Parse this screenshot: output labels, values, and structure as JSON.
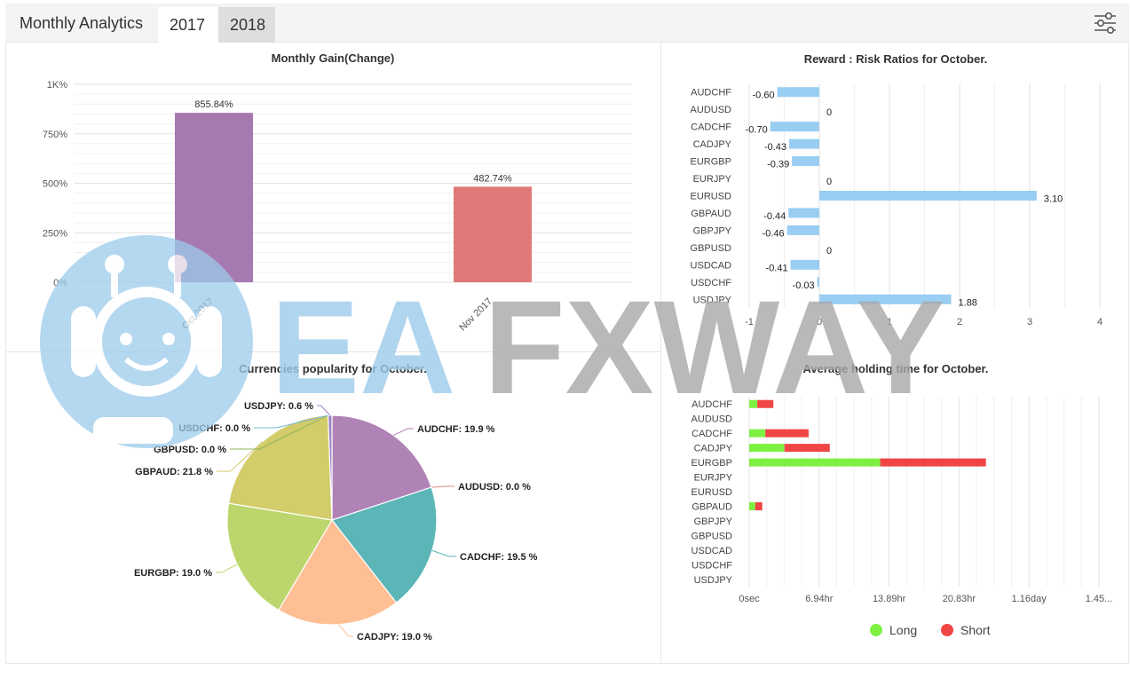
{
  "header": {
    "title": "Monthly Analytics",
    "tabs": [
      {
        "label": "2017"
      },
      {
        "label": "2018"
      }
    ],
    "active_tab": "2017"
  },
  "settings": {
    "icon": "sliders-icon"
  },
  "watermark": {
    "text_ea": "EA",
    "text_fxway": "FXWAY",
    "icon": "robot-face-icon",
    "color_blue": "#9ccbeb",
    "color_gray": "#a8a8a8"
  },
  "chart_data": [
    {
      "type": "bar",
      "title": "Monthly Gain(Change)",
      "categories": [
        "Oct 2017",
        "Nov 2017"
      ],
      "values": [
        855.84,
        482.74
      ],
      "value_labels": [
        "855.84%",
        "482.74%"
      ],
      "colors": [
        "#a679b0",
        "#e17878"
      ],
      "yticks": [
        "0%",
        "250%",
        "500%",
        "750%",
        "1K%"
      ],
      "ylim": [
        0,
        1000
      ],
      "grid": true
    },
    {
      "type": "bar",
      "orientation": "horizontal",
      "title": "Reward : Risk Ratios for October.",
      "categories": [
        "AUDCHF",
        "AUDUSD",
        "CADCHF",
        "CADJPY",
        "EURGBP",
        "EURJPY",
        "EURUSD",
        "GBPAUD",
        "GBPJPY",
        "GBPUSD",
        "USDCAD",
        "USDCHF",
        "USDJPY"
      ],
      "values": [
        -0.6,
        0,
        -0.7,
        -0.43,
        -0.39,
        0,
        3.1,
        -0.44,
        -0.46,
        0,
        -0.41,
        -0.03,
        1.88
      ],
      "value_labels": [
        "-0.60",
        "0",
        "-0.70",
        "-0.43",
        "-0.39",
        "0",
        "3.10",
        "-0.44",
        "-0.46",
        "0",
        "-0.41",
        "-0.03",
        "1.88"
      ],
      "color": "#99cdf2",
      "xticks": [
        "-1",
        "0",
        "1",
        "2",
        "3",
        "4"
      ],
      "xlim": [
        -1,
        4
      ],
      "grid": true
    },
    {
      "type": "pie",
      "title": "Currencies popularity for October.",
      "slices": [
        {
          "label": "AUDCHF: 19.9 %",
          "value": 19.9,
          "color": "#b083b6"
        },
        {
          "label": "AUDUSD: 0.0 %",
          "value": 0.0,
          "color": "#d98c7f"
        },
        {
          "label": "CADCHF: 19.5 %",
          "value": 19.5,
          "color": "#5cb5b7"
        },
        {
          "label": "CADJPY: 19.0 %",
          "value": 19.0,
          "color": "#ffbf94"
        },
        {
          "label": "EURGBP: 19.0 %",
          "value": 19.0,
          "color": "#bcd66d"
        },
        {
          "label": "GBPAUD: 21.8 %",
          "value": 21.8,
          "color": "#d2cc6a"
        },
        {
          "label": "GBPUSD: 0.0 %",
          "value": 0.0,
          "color": "#8fb45c"
        },
        {
          "label": "USDCHF: 0.0 %",
          "value": 0.0,
          "color": "#72b8d6"
        },
        {
          "label": "USDJPY: 0.6 %",
          "value": 0.6,
          "color": "#9c84c4"
        }
      ]
    },
    {
      "type": "bar",
      "orientation": "horizontal",
      "stacked": true,
      "title": "Average holding time for October.",
      "categories": [
        "AUDCHF",
        "AUDUSD",
        "CADCHF",
        "CADJPY",
        "EURGBP",
        "EURJPY",
        "EURUSD",
        "GBPAUD",
        "GBPJPY",
        "GBPUSD",
        "USDCAD",
        "USDCHF",
        "USDJPY"
      ],
      "series": [
        {
          "name": "Long",
          "color": "#7ef042",
          "values_hr": [
            0.8,
            0,
            1.6,
            3.5,
            13.0,
            0,
            0,
            0.6,
            0,
            0,
            0,
            0,
            0
          ]
        },
        {
          "name": "Short",
          "color": "#f04545",
          "values_hr": [
            1.6,
            0,
            4.3,
            4.5,
            10.5,
            0,
            0,
            0.7,
            0,
            0,
            0,
            0,
            0
          ]
        }
      ],
      "xticks": [
        "0sec",
        "6.94hr",
        "13.89hr",
        "20.83hr",
        "1.16day",
        "1.45..."
      ],
      "xlim_hr": [
        0,
        34.72
      ],
      "grid": true,
      "legend": {
        "position": "bottom",
        "items": [
          "Long",
          "Short"
        ]
      }
    }
  ]
}
